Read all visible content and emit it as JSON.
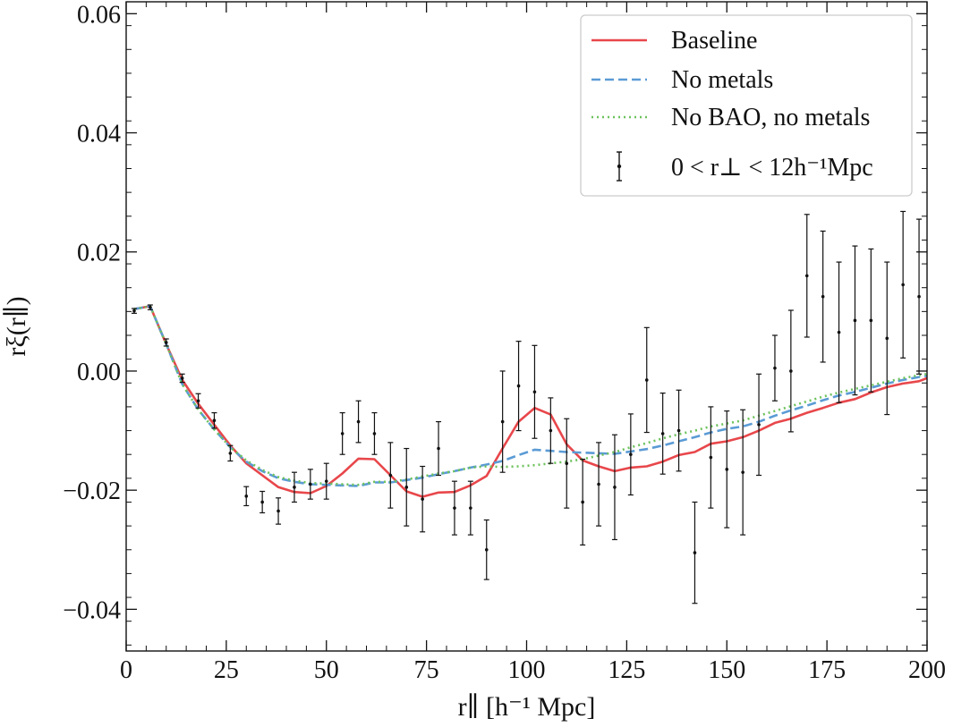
{
  "chart_data": {
    "type": "line",
    "xlabel": "r∥ [h⁻¹ Mpc]",
    "ylabel": "rξ(r∥)",
    "xlim": [
      0,
      200
    ],
    "ylim": [
      -0.047,
      0.062
    ],
    "x_ticks": [
      0,
      25,
      50,
      75,
      100,
      125,
      150,
      175,
      200
    ],
    "x_tick_labels": [
      "0",
      "25",
      "50",
      "75",
      "100",
      "125",
      "150",
      "175",
      "200"
    ],
    "y_ticks": [
      -0.04,
      -0.02,
      0.0,
      0.02,
      0.04,
      0.06
    ],
    "y_tick_labels": [
      "−0.04",
      "−0.02",
      "0.00",
      "0.02",
      "0.04",
      "0.06"
    ],
    "grid": false,
    "legend_position": "top-right",
    "series": [
      {
        "name": "Baseline",
        "style": "solid",
        "color": "#e8474b",
        "x": [
          2,
          6,
          10,
          14,
          18,
          22,
          26,
          30,
          34,
          38,
          42,
          46,
          50,
          54,
          58,
          62,
          66,
          70,
          74,
          78,
          82,
          86,
          90,
          94,
          98,
          102,
          106,
          110,
          114,
          118,
          122,
          126,
          130,
          134,
          138,
          142,
          146,
          150,
          154,
          158,
          162,
          166,
          170,
          174,
          178,
          182,
          186,
          190,
          194,
          198,
          200
        ],
        "y": [
          0.0104,
          0.0109,
          0.0045,
          -0.0015,
          -0.0055,
          -0.009,
          -0.0125,
          -0.0155,
          -0.0175,
          -0.0195,
          -0.0203,
          -0.0205,
          -0.0193,
          -0.0172,
          -0.0147,
          -0.0148,
          -0.0175,
          -0.0202,
          -0.0211,
          -0.0204,
          -0.0203,
          -0.0192,
          -0.0176,
          -0.013,
          -0.0085,
          -0.0062,
          -0.0073,
          -0.0123,
          -0.015,
          -0.016,
          -0.0168,
          -0.0162,
          -0.016,
          -0.0152,
          -0.0141,
          -0.0136,
          -0.0122,
          -0.0118,
          -0.0111,
          -0.01,
          -0.0087,
          -0.008,
          -0.007,
          -0.0062,
          -0.0053,
          -0.0047,
          -0.0036,
          -0.0027,
          -0.0021,
          -0.0017,
          -0.0012
        ]
      },
      {
        "name": "No metals",
        "style": "dashed",
        "color": "#5b9bd5",
        "x": [
          2,
          6,
          10,
          14,
          18,
          22,
          26,
          30,
          34,
          38,
          42,
          46,
          50,
          54,
          58,
          62,
          66,
          70,
          74,
          78,
          82,
          86,
          90,
          94,
          98,
          102,
          106,
          110,
          114,
          118,
          122,
          126,
          130,
          134,
          138,
          142,
          146,
          150,
          154,
          158,
          162,
          166,
          170,
          174,
          178,
          182,
          186,
          190,
          194,
          198,
          200
        ],
        "y": [
          0.0104,
          0.0109,
          0.0045,
          -0.0022,
          -0.0065,
          -0.0098,
          -0.0128,
          -0.0152,
          -0.0168,
          -0.018,
          -0.0186,
          -0.019,
          -0.0191,
          -0.0192,
          -0.0193,
          -0.0187,
          -0.0187,
          -0.0183,
          -0.0179,
          -0.0173,
          -0.0168,
          -0.0162,
          -0.0157,
          -0.0151,
          -0.0141,
          -0.0132,
          -0.0134,
          -0.0136,
          -0.0137,
          -0.0138,
          -0.0139,
          -0.0135,
          -0.0131,
          -0.0125,
          -0.0118,
          -0.0111,
          -0.0103,
          -0.0097,
          -0.0093,
          -0.0085,
          -0.0075,
          -0.0066,
          -0.0058,
          -0.0049,
          -0.0041,
          -0.0035,
          -0.0028,
          -0.0021,
          -0.0015,
          -0.001,
          -0.0008
        ]
      },
      {
        "name": "No BAO, no metals",
        "style": "dotted",
        "color": "#6cc25c",
        "x": [
          2,
          6,
          10,
          14,
          18,
          22,
          26,
          30,
          34,
          38,
          42,
          46,
          50,
          54,
          58,
          62,
          66,
          70,
          74,
          78,
          82,
          86,
          90,
          94,
          98,
          102,
          106,
          110,
          114,
          118,
          122,
          126,
          130,
          134,
          138,
          142,
          146,
          150,
          154,
          158,
          162,
          166,
          170,
          174,
          178,
          182,
          186,
          190,
          194,
          198,
          200
        ],
        "y": [
          0.0104,
          0.0109,
          0.0045,
          -0.0022,
          -0.0065,
          -0.0098,
          -0.0128,
          -0.015,
          -0.0166,
          -0.0178,
          -0.0184,
          -0.0188,
          -0.0189,
          -0.019,
          -0.0191,
          -0.0186,
          -0.0186,
          -0.0182,
          -0.0177,
          -0.0172,
          -0.0168,
          -0.0162,
          -0.016,
          -0.0161,
          -0.016,
          -0.0158,
          -0.0155,
          -0.0152,
          -0.0148,
          -0.0142,
          -0.0136,
          -0.0128,
          -0.0121,
          -0.0113,
          -0.0106,
          -0.01,
          -0.0093,
          -0.0088,
          -0.0083,
          -0.0075,
          -0.0067,
          -0.0059,
          -0.0051,
          -0.0043,
          -0.0036,
          -0.003,
          -0.0024,
          -0.0018,
          -0.0012,
          -0.0007,
          -0.0005
        ]
      },
      {
        "name": "0 < r⊥ < 12h⁻¹Mpc",
        "style": "errorbar",
        "color": "#111111",
        "x": [
          2,
          6,
          10,
          14,
          18,
          22,
          26,
          30,
          34,
          38,
          42,
          46,
          50,
          54,
          58,
          62,
          66,
          70,
          74,
          78,
          82,
          86,
          90,
          94,
          98,
          102,
          106,
          110,
          114,
          118,
          122,
          126,
          130,
          134,
          138,
          142,
          146,
          150,
          154,
          158,
          162,
          166,
          170,
          174,
          178,
          182,
          186,
          190,
          194,
          198
        ],
        "y": [
          0.0101,
          0.0107,
          0.0048,
          -0.0012,
          -0.005,
          -0.0083,
          -0.0138,
          -0.021,
          -0.022,
          -0.0235,
          -0.0195,
          -0.019,
          -0.0185,
          -0.0105,
          -0.0085,
          -0.0105,
          -0.0175,
          -0.0195,
          -0.0215,
          -0.013,
          -0.023,
          -0.023,
          -0.03,
          -0.0085,
          -0.0025,
          -0.0035,
          -0.01,
          -0.0155,
          -0.022,
          -0.019,
          -0.0195,
          -0.014,
          -0.0015,
          -0.0105,
          -0.01,
          -0.0305,
          -0.0145,
          -0.0165,
          -0.017,
          -0.009,
          0.0005,
          0.0,
          0.016,
          0.0125,
          0.0065,
          0.0085,
          0.0085,
          0.0055,
          0.0145,
          0.0125
        ],
        "err": [
          0.0004,
          0.0004,
          0.0006,
          0.0007,
          0.0012,
          0.0013,
          0.0013,
          0.0016,
          0.0018,
          0.0022,
          0.0025,
          0.0025,
          0.003,
          0.0035,
          0.0035,
          0.0035,
          0.0055,
          0.0065,
          0.0055,
          0.0045,
          0.0045,
          0.0045,
          0.005,
          0.0085,
          0.0075,
          0.0078,
          0.0055,
          0.0075,
          0.0072,
          0.007,
          0.0088,
          0.0068,
          0.0088,
          0.0068,
          0.0068,
          0.0085,
          0.0085,
          0.0098,
          0.0105,
          0.0085,
          0.0055,
          0.0102,
          0.0103,
          0.011,
          0.0118,
          0.0125,
          0.012,
          0.0128,
          0.0123,
          0.013
        ]
      }
    ]
  }
}
